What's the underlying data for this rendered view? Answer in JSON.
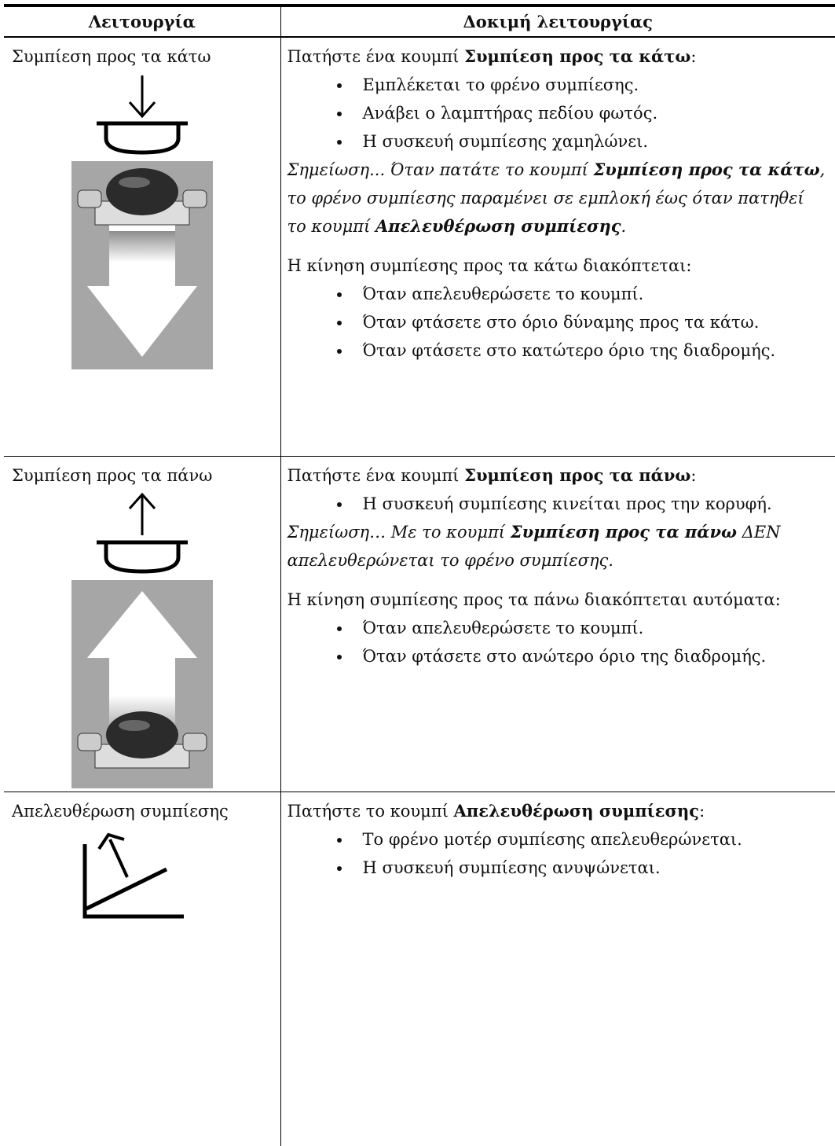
{
  "table": {
    "header": [
      "Λειτουργία",
      "Δοκιμή λειτουργίας"
    ],
    "rows": [
      {
        "function": "Συμπίεση προς τα κάτω",
        "intro": [
          {
            "text": "Πατήστε ένα κουμπί "
          },
          {
            "text": "Συμπίεση προς τα κάτω",
            "bold": true
          },
          {
            "text": ":"
          }
        ],
        "bullets": [
          "Εμπλέκεται το φρένο συμπίεσης.",
          "Ανάβει ο λαμπτήρας πεδίου φωτός.",
          "Η συσκευή συμπίεσης χαμηλώνει."
        ],
        "note": [
          {
            "text": "Σημείωση... Όταν πατάτε το κουμπί "
          },
          {
            "text": "Συμπίεση προς τα κάτω",
            "bold": true
          },
          {
            "text": ", το φρένο συμπίεσης παραμένει σε εμπλοκή έως όταν πατηθεί το κουμπί "
          },
          {
            "text": "Απελευθέρωση συμπίεσης",
            "bold": true
          },
          {
            "text": "."
          }
        ],
        "stop_intro": "Η κίνηση συμπίεσης προς τα κάτω διακόπτεται:",
        "stop_bullets": [
          "Όταν απελευθερώσετε το κουμπί.",
          "Όταν φτάσετε στο όριο δύναμης προς τα κάτω.",
          "Όταν φτάσετε στο κατώτερο όριο της διαδρομής."
        ]
      },
      {
        "function": "Συμπίεση προς τα πάνω",
        "intro": [
          {
            "text": "Πατήστε ένα κουμπί "
          },
          {
            "text": "Συμπίεση προς τα πάνω",
            "bold": true
          },
          {
            "text": ":"
          }
        ],
        "bullets": [
          "Η συσκευή συμπίεσης κινείται προς την κορυφή."
        ],
        "note": [
          {
            "text": "Σημείωση… Με το κουμπί "
          },
          {
            "text": "Συμπίεση προς τα πάνω",
            "bold": true
          },
          {
            "text": " ΔΕΝ απελευθερώνεται το φρένο συμπίεσης."
          }
        ],
        "stop_intro": "Η κίνηση συμπίεσης προς τα πάνω διακόπτεται αυτόματα:",
        "stop_bullets": [
          "Όταν απελευθερώσετε το κουμπί.",
          "Όταν φτάσετε στο ανώτερο όριο της διαδρομής."
        ]
      },
      {
        "function": "Απελευθέρωση συμπίεσης",
        "intro": [
          {
            "text": "Πατήστε το κουμπί "
          },
          {
            "text": "Απελευθέρωση συμπίεσης",
            "bold": true
          },
          {
            "text": ":"
          }
        ],
        "bullets": [
          "Το φρένο μοτέρ συμπίεσης απελευθερώνεται.",
          "Η συσκευή συμπίεσης ανυψώνεται."
        ]
      }
    ]
  }
}
